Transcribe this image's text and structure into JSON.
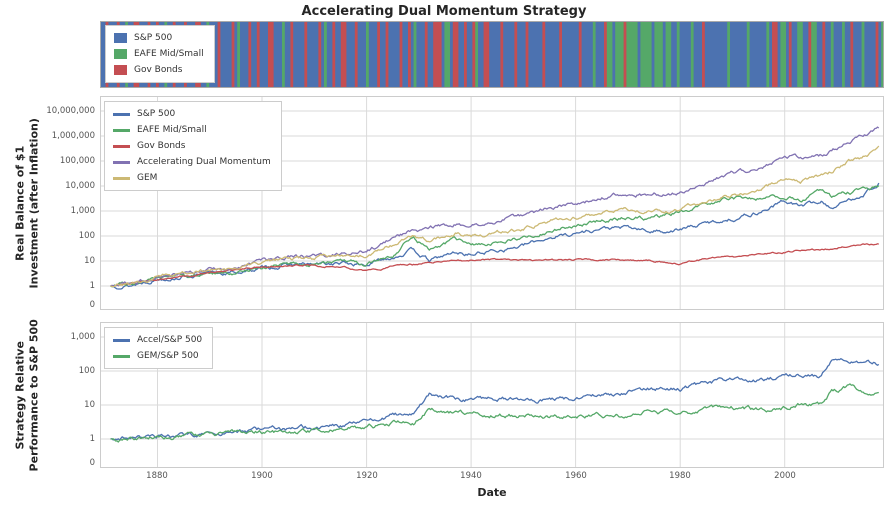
{
  "title": "Accelerating Dual Momentum Strategy",
  "allocation_strip": {
    "legend": [
      {
        "label": "S&P 500",
        "color": "#4c72b0"
      },
      {
        "label": "EAFE Mid/Small",
        "color": "#55a868"
      },
      {
        "label": "Gov Bonds",
        "color": "#c44e52"
      }
    ],
    "color_map": {
      "B": "#4c72b0",
      "G": "#55a868",
      "R": "#c44e52"
    },
    "sequence": "BBRBBBRBBGBBRRBBBRBBRBBGBBRBBBRBBBRRBBGBBBRBBBBRBGBBBRBBRBBBRRBBBGBBRBBBBRBBBBRBGBBRBBRRBBBRBBBGBBBRBBRBBBBRBBRBGBBBRBBRRRBGGBRRBBRBBRGBBRRBBBBRBBBBRBBBRBBBBBRBBBBBRBBBBBBRBBBBGBBBRGGBGGGRGGGGBGGGGBGGGBGGBBGBBBBGBBBRBBBBBBBBGBBBBBBGBBBBBBGBRRBGGBRBBGGBBRGGBBRBBGBBBGBBRBBBGBBBBRBG"
  },
  "chart_data": [
    {
      "type": "line",
      "name": "growth",
      "yscale": "log",
      "ylabel_lines": [
        "Real Balance of $1",
        "Investment (after Inflation)"
      ],
      "ytick_labels": [
        "10,000,000",
        "1,000,000",
        "100,000",
        "10,000",
        "1,000",
        "100",
        "10",
        "1",
        "0"
      ],
      "ytick_logs": [
        7,
        6,
        5,
        4,
        3,
        2,
        1,
        0,
        null
      ],
      "xlim": [
        1869,
        2019
      ],
      "xtick_years": [
        1880,
        1900,
        1920,
        1940,
        1960,
        1980,
        2000
      ],
      "x": [
        1871,
        1875,
        1880,
        1885,
        1890,
        1895,
        1900,
        1905,
        1910,
        1915,
        1920,
        1925,
        1929,
        1932,
        1937,
        1940,
        1945,
        1950,
        1955,
        1960,
        1965,
        1970,
        1974,
        1980,
        1985,
        1990,
        1995,
        2000,
        2003,
        2007,
        2009,
        2012,
        2015,
        2018
      ],
      "series": [
        {
          "name": "S&P 500",
          "color": "#4c72b0",
          "values": [
            1,
            1.1,
            2,
            2.5,
            3,
            3.5,
            5,
            7,
            7,
            8,
            7,
            15,
            28,
            10,
            22,
            18,
            28,
            40,
            90,
            130,
            200,
            210,
            150,
            180,
            320,
            500,
            900,
            2500,
            1600,
            2400,
            1400,
            2500,
            5000,
            13000
          ]
        },
        {
          "name": "EAFE Mid/Small",
          "color": "#55a868",
          "values": [
            1,
            1.2,
            2.2,
            2.6,
            3,
            3.6,
            5,
            7.5,
            8.5,
            9,
            8,
            18,
            90,
            30,
            70,
            45,
            55,
            90,
            160,
            250,
            400,
            600,
            500,
            900,
            1800,
            3500,
            3000,
            4000,
            3000,
            6000,
            3500,
            5000,
            7000,
            9000
          ]
        },
        {
          "name": "Gov Bonds",
          "color": "#c44e52",
          "values": [
            1,
            1.3,
            1.8,
            2.5,
            3.5,
            4.5,
            6,
            6.5,
            6.5,
            6,
            4,
            6,
            7,
            9,
            10,
            11,
            11,
            10,
            10,
            11,
            12,
            11,
            10,
            8,
            12,
            14,
            18,
            22,
            26,
            28,
            32,
            40,
            45,
            50
          ]
        },
        {
          "name": "Accelerating Dual Momentum",
          "color": "#8172b2",
          "values": [
            1,
            1.15,
            2.4,
            3.2,
            4.5,
            5.6,
            9,
            14,
            15,
            20,
            25,
            75,
            170,
            200,
            330,
            250,
            420,
            640,
            1260,
            1950,
            3600,
            5250,
            4500,
            5400,
            14400,
            30000,
            49500,
            162500,
            128000,
            168000,
            252000,
            575000,
            950000,
            2080000
          ]
        },
        {
          "name": "GEM",
          "color": "#ccb974",
          "values": [
            1,
            1.1,
            2.2,
            3.1,
            4.2,
            5.3,
            8,
            12,
            12.6,
            16,
            15.4,
            42,
            84,
            70,
            132,
            99,
            140,
            200,
            405,
            585,
            960,
            1050,
            975,
            1080,
            2240,
            4000,
            6750,
            20000,
            16000,
            24000,
            35000,
            87500,
            140000,
            286000
          ]
        }
      ]
    },
    {
      "type": "line",
      "name": "relative-performance",
      "yscale": "log",
      "ylabel_lines": [
        "Strategy Relative",
        "Performance to S&P 500"
      ],
      "xlabel": "Date",
      "ytick_labels": [
        "1,000",
        "100",
        "10",
        "1",
        "0"
      ],
      "ytick_logs": [
        3,
        2,
        1,
        0,
        null
      ],
      "xlim": [
        1869,
        2019
      ],
      "xtick_years": [
        1880,
        1900,
        1920,
        1940,
        1960,
        1980,
        2000
      ],
      "x": [
        1871,
        1875,
        1880,
        1885,
        1890,
        1895,
        1900,
        1905,
        1910,
        1915,
        1920,
        1925,
        1929,
        1932,
        1937,
        1940,
        1945,
        1950,
        1955,
        1960,
        1965,
        1970,
        1974,
        1980,
        1985,
        1990,
        1995,
        2000,
        2003,
        2007,
        2009,
        2012,
        2015,
        2018
      ],
      "series": [
        {
          "name": "Accel/S&P 500",
          "color": "#4c72b0",
          "values": [
            1,
            1.05,
            1.2,
            1.3,
            1.5,
            1.6,
            1.8,
            2,
            2.2,
            2.5,
            3.5,
            5,
            6,
            20,
            15,
            14,
            15,
            16,
            14,
            15,
            18,
            25,
            30,
            30,
            45,
            60,
            55,
            65,
            80,
            70,
            180,
            230,
            190,
            160
          ]
        },
        {
          "name": "GEM/S&P 500",
          "color": "#55a868",
          "values": [
            1,
            1,
            1.1,
            1.25,
            1.4,
            1.5,
            1.6,
            1.7,
            1.8,
            2,
            2.2,
            2.8,
            3,
            7,
            6,
            5.5,
            5,
            5,
            4.5,
            4.5,
            4.8,
            5,
            6.5,
            6,
            7,
            8,
            7.5,
            8,
            10,
            10,
            25,
            35,
            28,
            22
          ]
        }
      ]
    }
  ]
}
